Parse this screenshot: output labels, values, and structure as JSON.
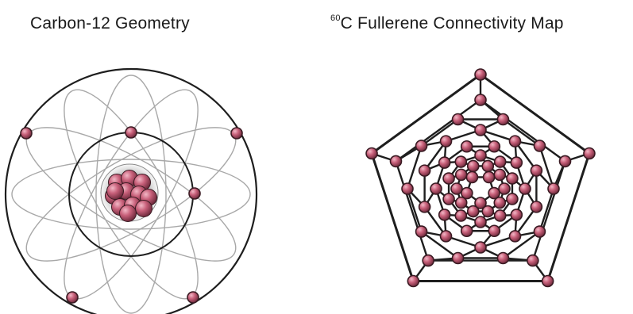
{
  "diagrams": {
    "left": {
      "title": "Carbon-12 Geometry"
    },
    "right": {
      "title_superscript": "60",
      "title_text": "C Fullerene Connectivity Map"
    }
  },
  "colors": {
    "atom_fill": "#c8607a",
    "atom_stroke": "#3a1a22",
    "outline": "#1e1e1e",
    "orbit": "#a8a8a8",
    "nucleus_haze": "#9a9a9a",
    "background": "#ffffff"
  }
}
